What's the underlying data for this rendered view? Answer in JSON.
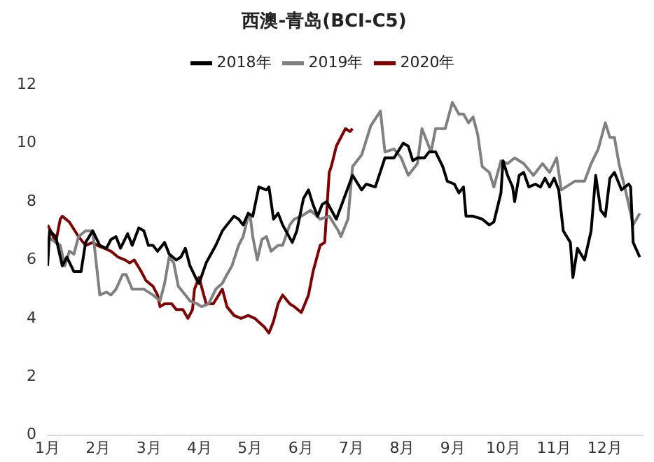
{
  "chart_data": {
    "type": "line",
    "title": "西澳-青岛(BCI-C5)",
    "legend": "top",
    "grid": false,
    "marker": "none",
    "line_style": "solid",
    "xlim": [
      1,
      12.75
    ],
    "xticks": [
      {
        "value": 1,
        "label": "1月"
      },
      {
        "value": 2,
        "label": "2月"
      },
      {
        "value": 3,
        "label": "3月"
      },
      {
        "value": 4,
        "label": "4月"
      },
      {
        "value": 5,
        "label": "5月"
      },
      {
        "value": 6,
        "label": "6月"
      },
      {
        "value": 7,
        "label": "7月"
      },
      {
        "value": 8,
        "label": "8月"
      },
      {
        "value": 9,
        "label": "9月"
      },
      {
        "value": 10,
        "label": "10月"
      },
      {
        "value": 11,
        "label": "11月"
      },
      {
        "value": 12,
        "label": "12月"
      }
    ],
    "ylim": [
      0,
      12
    ],
    "yticks": [
      0,
      2,
      4,
      6,
      8,
      10,
      12
    ],
    "series": [
      {
        "name": "2018年",
        "color": "#000000",
        "x": [
          1.0,
          1.04,
          1.16,
          1.29,
          1.38,
          1.52,
          1.66,
          1.75,
          1.89,
          2.03,
          2.16,
          2.25,
          2.35,
          2.44,
          2.58,
          2.67,
          2.8,
          2.9,
          2.99,
          3.08,
          3.17,
          3.31,
          3.4,
          3.54,
          3.63,
          3.72,
          3.81,
          3.95,
          3.99,
          4.13,
          4.32,
          4.45,
          4.54,
          4.68,
          4.77,
          4.86,
          4.96,
          5.05,
          5.17,
          5.32,
          5.37,
          5.46,
          5.55,
          5.64,
          5.83,
          5.92,
          6.05,
          6.15,
          6.24,
          6.33,
          6.42,
          6.51,
          6.7,
          7.02,
          7.2,
          7.29,
          7.47,
          7.66,
          7.84,
          8.02,
          8.12,
          8.21,
          8.3,
          8.44,
          8.53,
          8.66,
          8.8,
          8.89,
          9.03,
          9.12,
          9.21,
          9.26,
          9.4,
          9.58,
          9.72,
          9.81,
          9.95,
          9.99,
          10.08,
          10.18,
          10.22,
          10.31,
          10.4,
          10.5,
          10.63,
          10.73,
          10.82,
          10.91,
          11.0,
          11.09,
          11.18,
          11.32,
          11.37,
          11.46,
          11.6,
          11.73,
          11.82,
          11.92,
          12.01,
          12.1,
          12.19,
          12.33,
          12.47,
          12.51,
          12.56,
          12.69
        ],
        "values": [
          5.8,
          7.0,
          6.8,
          5.8,
          6.1,
          5.6,
          5.6,
          6.6,
          7.0,
          6.5,
          6.4,
          6.7,
          6.8,
          6.4,
          6.9,
          6.5,
          7.1,
          7.0,
          6.5,
          6.5,
          6.3,
          6.6,
          6.2,
          6.0,
          6.1,
          6.4,
          5.8,
          5.3,
          5.2,
          5.9,
          6.5,
          7.0,
          7.2,
          7.5,
          7.4,
          7.2,
          7.6,
          7.5,
          8.5,
          8.4,
          8.5,
          7.4,
          7.6,
          7.2,
          6.6,
          7.0,
          8.1,
          8.4,
          7.9,
          7.5,
          7.9,
          8.0,
          7.4,
          8.9,
          8.4,
          8.6,
          8.5,
          9.5,
          9.5,
          10.0,
          9.9,
          9.4,
          9.5,
          9.5,
          9.7,
          9.7,
          9.2,
          8.7,
          8.6,
          8.3,
          8.5,
          7.5,
          7.5,
          7.4,
          7.2,
          7.3,
          8.3,
          9.4,
          8.9,
          8.5,
          8.0,
          8.9,
          9.0,
          8.5,
          8.6,
          8.5,
          8.8,
          8.5,
          8.8,
          8.4,
          7.0,
          6.6,
          5.4,
          6.4,
          6.0,
          7.0,
          8.9,
          7.7,
          7.5,
          8.8,
          9.0,
          8.4,
          8.6,
          8.5,
          6.6,
          6.1
        ]
      },
      {
        "name": "2019年",
        "color": "#808080",
        "x": [
          1.0,
          1.16,
          1.25,
          1.34,
          1.43,
          1.52,
          1.61,
          1.75,
          1.89,
          2.03,
          2.16,
          2.25,
          2.35,
          2.48,
          2.55,
          2.67,
          2.9,
          3.08,
          3.22,
          3.31,
          3.4,
          3.49,
          3.58,
          3.72,
          3.81,
          3.95,
          4.04,
          4.18,
          4.32,
          4.45,
          4.54,
          4.64,
          4.77,
          4.86,
          4.96,
          5.0,
          5.05,
          5.14,
          5.23,
          5.32,
          5.41,
          5.55,
          5.64,
          5.78,
          5.87,
          6.01,
          6.19,
          6.38,
          6.56,
          6.74,
          6.79,
          6.93,
          7.02,
          7.2,
          7.38,
          7.57,
          7.66,
          7.84,
          7.98,
          8.12,
          8.3,
          8.39,
          8.48,
          8.57,
          8.66,
          8.85,
          8.99,
          9.12,
          9.21,
          9.31,
          9.4,
          9.49,
          9.58,
          9.72,
          9.81,
          9.95,
          10.08,
          10.22,
          10.4,
          10.59,
          10.77,
          10.91,
          11.05,
          11.14,
          11.23,
          11.41,
          11.6,
          11.73,
          11.87,
          12.01,
          12.1,
          12.19,
          12.28,
          12.42,
          12.56,
          12.69
        ],
        "values": [
          6.8,
          6.6,
          6.5,
          5.8,
          6.3,
          6.2,
          6.8,
          7.0,
          7.0,
          4.8,
          4.9,
          4.8,
          5.0,
          5.5,
          5.5,
          5.0,
          5.0,
          4.8,
          4.6,
          5.2,
          6.1,
          5.9,
          5.1,
          4.8,
          4.6,
          4.5,
          4.4,
          4.5,
          5.0,
          5.2,
          5.5,
          5.8,
          6.5,
          6.8,
          7.5,
          7.5,
          6.8,
          6.0,
          6.7,
          6.8,
          6.3,
          6.5,
          6.5,
          7.2,
          7.4,
          7.5,
          7.7,
          7.4,
          7.5,
          7.0,
          6.8,
          7.4,
          9.2,
          9.6,
          10.6,
          11.1,
          9.7,
          9.8,
          9.5,
          8.9,
          9.3,
          10.5,
          10.1,
          9.7,
          10.5,
          10.5,
          11.4,
          11.0,
          11.0,
          10.7,
          10.9,
          10.3,
          9.2,
          9.0,
          8.5,
          9.4,
          9.3,
          9.5,
          9.3,
          8.9,
          9.3,
          9.0,
          9.5,
          8.4,
          8.5,
          8.7,
          8.7,
          9.3,
          9.8,
          10.7,
          10.2,
          10.2,
          9.3,
          8.3,
          7.2,
          7.6
        ]
      },
      {
        "name": "2020年",
        "color": "#7f0000",
        "x": [
          1.0,
          1.06,
          1.16,
          1.25,
          1.29,
          1.43,
          1.61,
          1.75,
          1.89,
          1.98,
          2.12,
          2.25,
          2.39,
          2.53,
          2.62,
          2.71,
          2.85,
          2.94,
          3.08,
          3.17,
          3.22,
          3.31,
          3.45,
          3.54,
          3.67,
          3.77,
          3.86,
          3.9,
          3.99,
          4.13,
          4.27,
          4.45,
          4.54,
          4.68,
          4.82,
          4.96,
          5.09,
          5.28,
          5.37,
          5.46,
          5.55,
          5.64,
          5.78,
          5.87,
          6.01,
          6.15,
          6.24,
          6.38,
          6.47,
          6.56,
          6.6,
          6.7,
          6.79,
          6.88,
          6.97,
          7.02
        ],
        "values": [
          7.2,
          7.0,
          6.6,
          7.4,
          7.5,
          7.3,
          6.8,
          6.5,
          6.6,
          6.5,
          6.4,
          6.3,
          6.1,
          6.0,
          5.9,
          6.0,
          5.6,
          5.3,
          5.1,
          4.8,
          4.4,
          4.5,
          4.5,
          4.3,
          4.3,
          4.0,
          4.3,
          5.0,
          5.4,
          4.5,
          4.5,
          5.0,
          4.4,
          4.1,
          4.0,
          4.1,
          4.0,
          3.7,
          3.5,
          3.9,
          4.5,
          4.8,
          4.5,
          4.4,
          4.2,
          4.8,
          5.6,
          6.5,
          6.6,
          9.0,
          9.2,
          9.9,
          10.2,
          10.5,
          10.4,
          10.5
        ]
      }
    ]
  }
}
